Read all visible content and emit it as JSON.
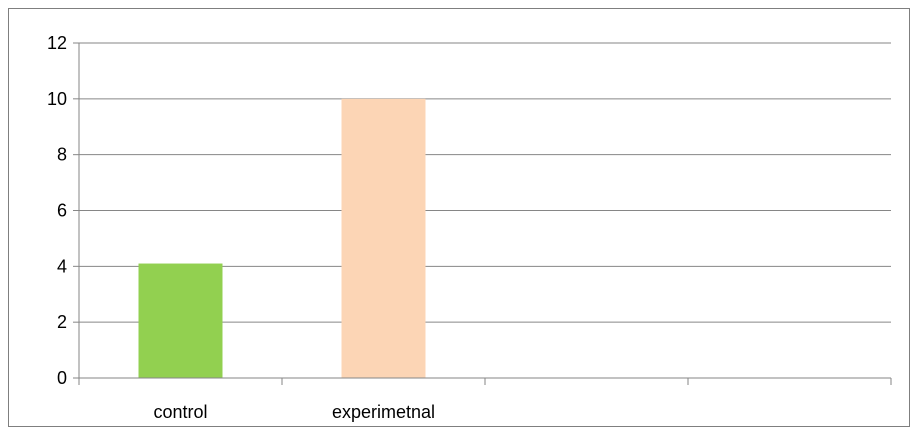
{
  "chart_data": {
    "type": "bar",
    "title": "",
    "xlabel": "",
    "ylabel": "",
    "categories": [
      "control",
      "experimetnal",
      "",
      ""
    ],
    "values": [
      4.1,
      10,
      null,
      null
    ],
    "bar_colors": [
      "#92d050",
      "#fcd5b5"
    ],
    "ylim": [
      0,
      12
    ],
    "yticks": [
      0,
      2,
      4,
      6,
      8,
      10,
      12
    ],
    "grid": true,
    "legend": "none"
  }
}
